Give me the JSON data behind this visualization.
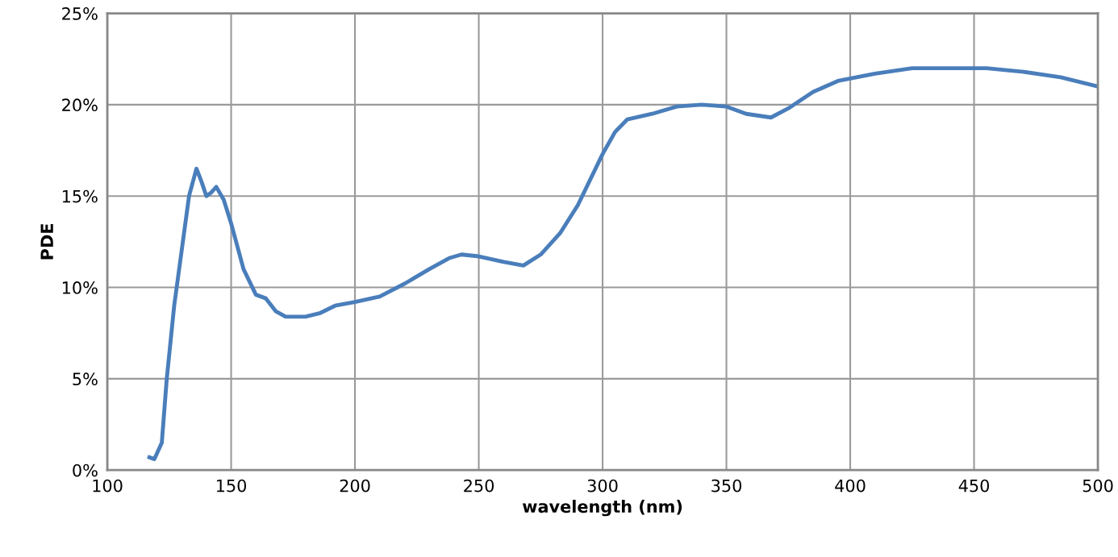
{
  "chart_data": {
    "type": "line",
    "xlabel": "wavelength (nm)",
    "ylabel": "PDE",
    "x": [
      117,
      119,
      122,
      124,
      127,
      130,
      133,
      136,
      138,
      140,
      142,
      144,
      147,
      150,
      155,
      160,
      164,
      168,
      172,
      180,
      186,
      192,
      200,
      210,
      220,
      230,
      238,
      243,
      250,
      260,
      268,
      275,
      283,
      290,
      300,
      305,
      310,
      320,
      330,
      340,
      350,
      358,
      368,
      375,
      385,
      395,
      410,
      425,
      440,
      455,
      470,
      485,
      500
    ],
    "series": [
      {
        "color": "#4a7ebb",
        "values": [
          0.7,
          0.6,
          1.5,
          5,
          9,
          12,
          15,
          16.5,
          15.8,
          15,
          15.2,
          15.5,
          14.8,
          13.5,
          11,
          9.6,
          9.4,
          8.7,
          8.4,
          8.4,
          8.6,
          9.0,
          9.2,
          9.5,
          10.2,
          11,
          11.6,
          11.8,
          11.7,
          11.4,
          11.2,
          11.8,
          13,
          14.5,
          17.3,
          18.5,
          19.2,
          19.5,
          19.9,
          20.0,
          19.9,
          19.5,
          19.3,
          19.8,
          20.7,
          21.3,
          21.7,
          22,
          22,
          22,
          21.8,
          21.5,
          21.0
        ]
      }
    ],
    "xlim": [
      100,
      500
    ],
    "xticks": [
      100,
      150,
      200,
      250,
      300,
      350,
      400,
      450,
      500
    ],
    "ylim": [
      0,
      25
    ],
    "yticks": [
      {
        "value": 0,
        "label": "0%"
      },
      {
        "value": 5,
        "label": "5%"
      },
      {
        "value": 10,
        "label": "10%"
      },
      {
        "value": 15,
        "label": "15%"
      },
      {
        "value": 20,
        "label": "20%"
      },
      {
        "value": 25,
        "label": "25%"
      }
    ],
    "grid": true,
    "marker": "none",
    "line_style": "solid",
    "legend": false
  }
}
